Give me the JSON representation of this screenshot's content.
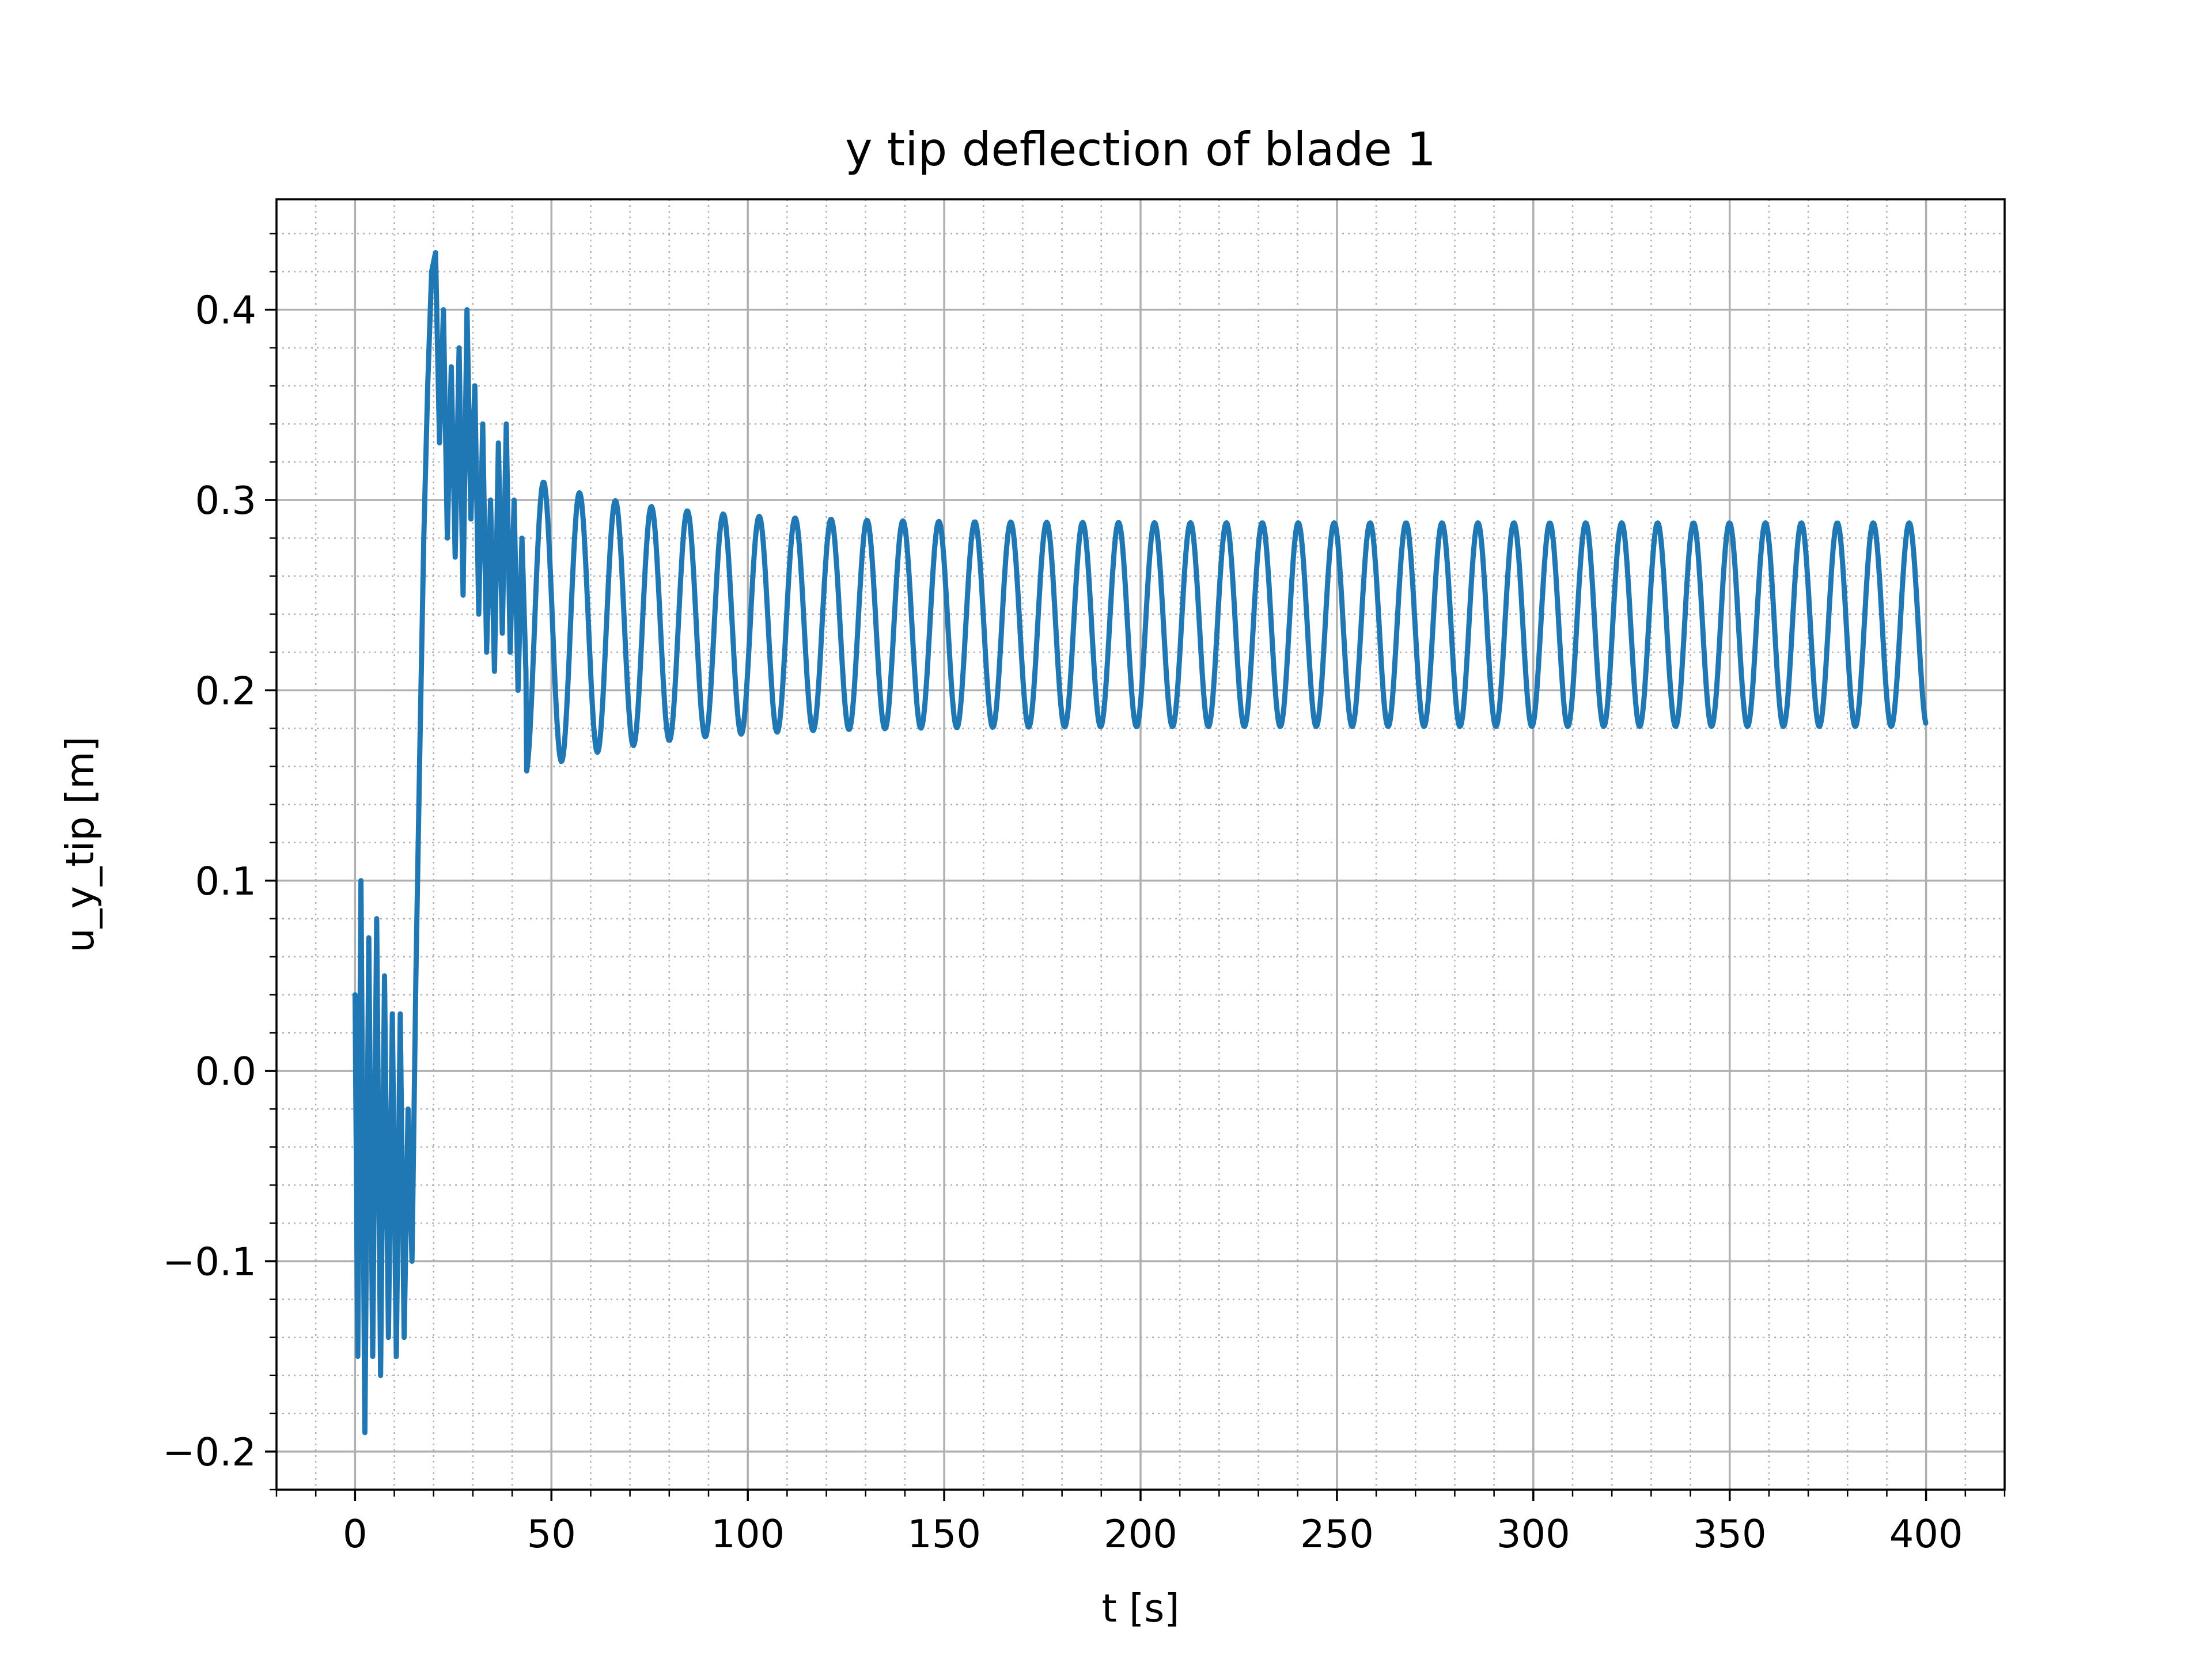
{
  "chart_data": {
    "type": "line",
    "title": "y tip deflection of blade 1",
    "xlabel": "t [s]",
    "ylabel": "u_y_tip [m]",
    "xlim": [
      -20,
      420
    ],
    "ylim": [
      -0.22,
      0.458
    ],
    "xticks": [
      0,
      50,
      100,
      150,
      200,
      250,
      300,
      350,
      400
    ],
    "xtick_labels": [
      "0",
      "50",
      "100",
      "150",
      "200",
      "250",
      "300",
      "350",
      "400"
    ],
    "yticks": [
      -0.2,
      -0.1,
      0.0,
      0.1,
      0.2,
      0.3,
      0.4
    ],
    "ytick_labels": [
      "−0.2",
      "−0.1",
      "0.0",
      "0.1",
      "0.2",
      "0.3",
      "0.4"
    ],
    "x_minor_step": 10,
    "y_minor_step": 0.02,
    "grid": {
      "major": true,
      "minor": true,
      "major_color": "#b0b0b0",
      "minor_style": "dotted"
    },
    "series": [
      {
        "color": "#1f77b4",
        "x_range": [
          0,
          400
        ],
        "transient": {
          "x": [
            0,
            0.7,
            1.5,
            2.5,
            3.5,
            4.5,
            5.5,
            6.5,
            7.5,
            8.5,
            9.5,
            10.5,
            11.5,
            12.5,
            13.5,
            14.5,
            15.5,
            16.5,
            17.5,
            18.5,
            19.5,
            20.5,
            21.5,
            22.5,
            23.5,
            24.5,
            25.5,
            26.5,
            27.5,
            28.5,
            29.5,
            30.5,
            31.5,
            32.5,
            33.5,
            34.5,
            35.5,
            36.5,
            37.5,
            38.5,
            39.5,
            40.5,
            41.5,
            42.5,
            43.5
          ],
          "y": [
            0.04,
            -0.15,
            0.1,
            -0.19,
            0.07,
            -0.15,
            0.08,
            -0.16,
            0.05,
            -0.14,
            0.03,
            -0.15,
            0.03,
            -0.14,
            -0.02,
            -0.1,
            0.05,
            0.17,
            0.28,
            0.36,
            0.42,
            0.43,
            0.33,
            0.4,
            0.28,
            0.37,
            0.27,
            0.38,
            0.25,
            0.4,
            0.29,
            0.36,
            0.24,
            0.34,
            0.22,
            0.3,
            0.21,
            0.33,
            0.23,
            0.34,
            0.22,
            0.3,
            0.2,
            0.28,
            0.21
          ]
        },
        "steady": {
          "period": 9.15,
          "mean": 0.2345,
          "amplitude_end": 0.0535,
          "amplitude_at_44s": 0.078,
          "first_peak_t": 48,
          "peak_value_at_48s": 0.313
        }
      }
    ]
  }
}
